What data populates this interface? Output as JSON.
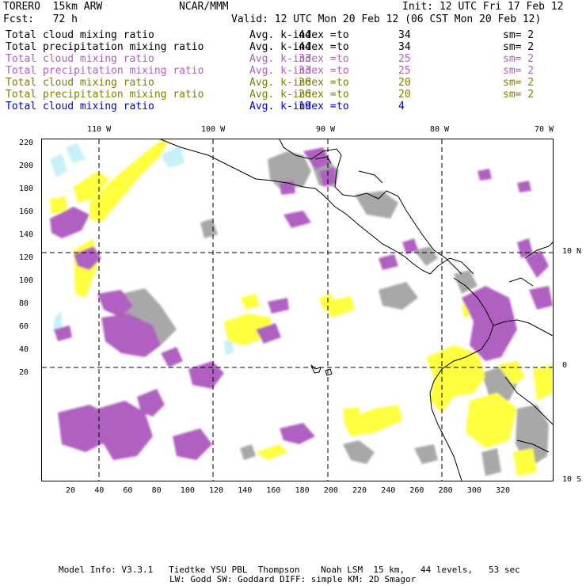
{
  "header": {
    "model": "TORERO  15km ARW",
    "center": "NCAR/MMM",
    "init": "Init: 12 UTC Fri 17 Feb 12",
    "fcst": "Fcst:   72 h",
    "valid": "Valid: 12 UTC Mon 20 Feb 12 (06 CST Mon 20 Feb 12)"
  },
  "legend": [
    {
      "field": "Total cloud mixing ratio",
      "kindex": "Avg. k-index =",
      "lo": "44",
      "to": "to",
      "hi": "34",
      "sm": "sm= 2",
      "color": "#000000"
    },
    {
      "field": "Total precipitation mixing ratio",
      "kindex": "Avg. k-index =",
      "lo": "44",
      "to": "to",
      "hi": "34",
      "sm": "sm= 2",
      "color": "#000000"
    },
    {
      "field": "Total cloud mixing ratio",
      "kindex": "Avg. k-index =",
      "lo": "33",
      "to": "to",
      "hi": "25",
      "sm": "sm= 2",
      "color": "#b060c0"
    },
    {
      "field": "Total precipitation mixing ratio",
      "kindex": "Avg. k-index =",
      "lo": "33",
      "to": "to",
      "hi": "25",
      "sm": "sm= 2",
      "color": "#b060c0"
    },
    {
      "field": "Total cloud mixing ratio",
      "kindex": "Avg. k-index =",
      "lo": "26",
      "to": "to",
      "hi": "20",
      "sm": "sm= 2",
      "color": "#808000"
    },
    {
      "field": "Total precipitation mixing ratio",
      "kindex": "Avg. k-index =",
      "lo": "26",
      "to": "to",
      "hi": "20",
      "sm": "sm= 2",
      "color": "#808000"
    },
    {
      "field": "Total cloud mixing ratio",
      "kindex": "Avg. k-index =",
      "lo": "19",
      "to": "to",
      "hi": "4",
      "sm": "",
      "color": "#0000cc"
    }
  ],
  "axes": {
    "top_lon": [
      "110 W",
      "100 W",
      "90 W",
      "80 W",
      "70 W"
    ],
    "right_lat": [
      "10 N",
      "0",
      "10 S"
    ],
    "left_y": [
      "220",
      "200",
      "180",
      "160",
      "140",
      "120",
      "100",
      "80",
      "60",
      "40",
      "20"
    ],
    "bottom_x": [
      "20",
      "40",
      "60",
      "80",
      "100",
      "120",
      "140",
      "160",
      "180",
      "200",
      "220",
      "240",
      "260",
      "280",
      "300",
      "320"
    ]
  },
  "footer": {
    "line1": "Model Info: V3.3.1   Tiedtke YSU PBL  Thompson    Noah LSM  15 km,   44 levels,   53 sec",
    "line2": "LW: Godd SW: Goddard DIFF: simple KM: 2D Smagor"
  },
  "colors": {
    "gray": "#a8a8a8",
    "purple": "#b060c0",
    "yellow": "#ffff40",
    "cyan": "#c8f0f8"
  }
}
